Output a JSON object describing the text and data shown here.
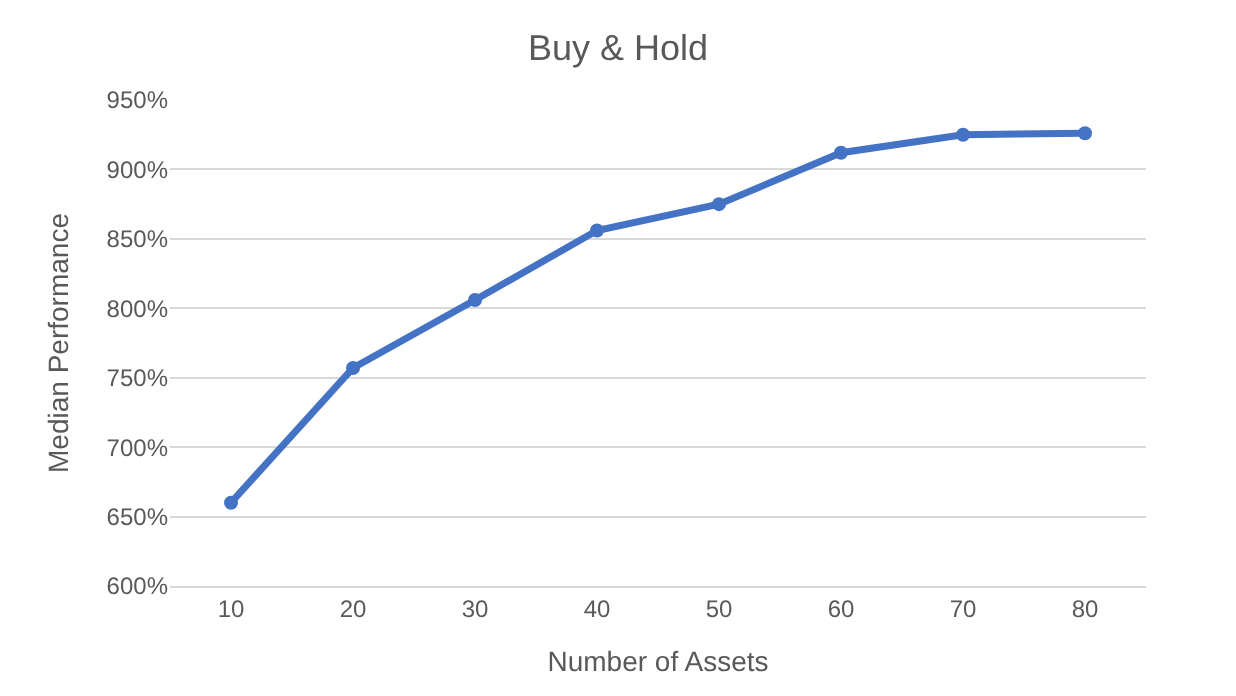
{
  "chart_data": {
    "type": "line",
    "title": "Buy & Hold",
    "xlabel": "Number of Assets",
    "ylabel": "Median Performance",
    "categories": [
      "10",
      "20",
      "30",
      "40",
      "50",
      "60",
      "70",
      "80"
    ],
    "series": [
      {
        "color": "#4472c4",
        "values": [
          660,
          757,
          806,
          856,
          875,
          912,
          925,
          926
        ]
      }
    ],
    "ylim": [
      600,
      950
    ],
    "yticks": [
      {
        "value": 600,
        "label": "600%"
      },
      {
        "value": 650,
        "label": "650%"
      },
      {
        "value": 700,
        "label": "700%"
      },
      {
        "value": 750,
        "label": "750%"
      },
      {
        "value": 800,
        "label": "800%"
      },
      {
        "value": 850,
        "label": "850%"
      },
      {
        "value": 900,
        "label": "900%"
      },
      {
        "value": 950,
        "label": "950%"
      }
    ],
    "grid": "y",
    "marker": "circle",
    "line_style": "solid"
  }
}
